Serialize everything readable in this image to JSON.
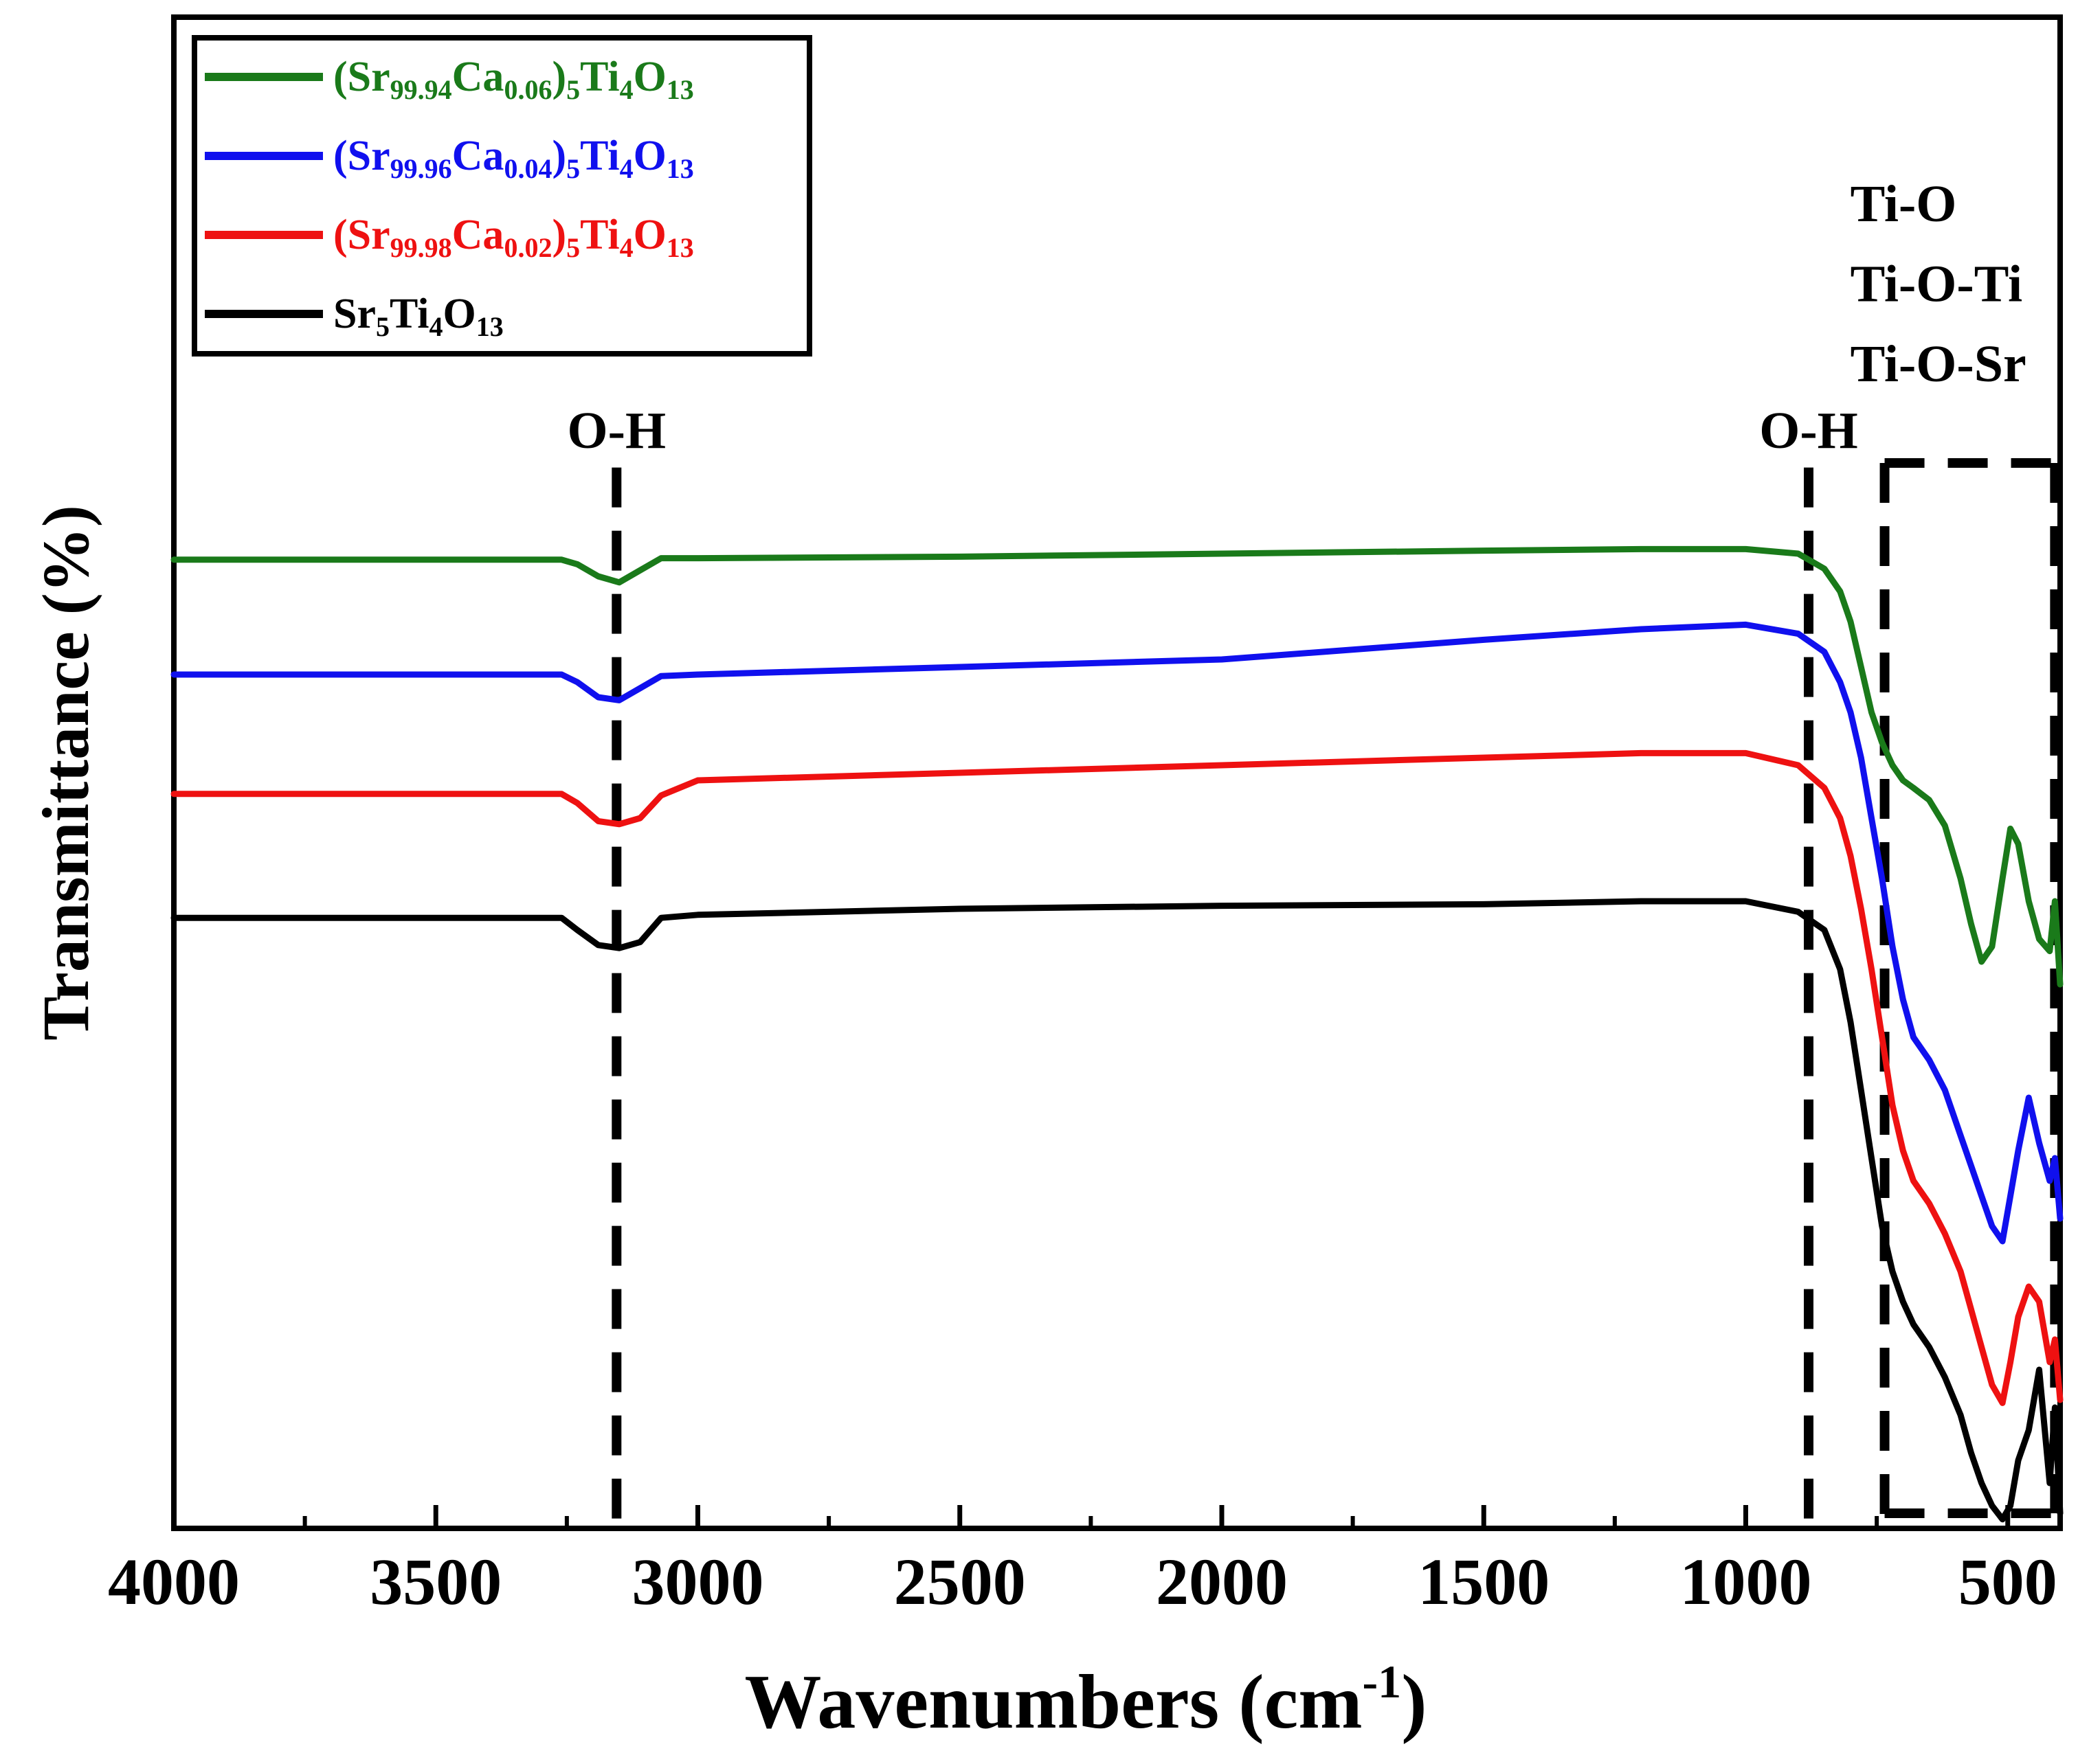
{
  "colors": {
    "green": "#1a7a1a",
    "blue": "#1010ee",
    "red": "#ee1111",
    "black": "#000000"
  },
  "chart_data": {
    "type": "line",
    "xlabel": "Wavenumbers (cm",
    "xlabel_sup": "-1",
    "xlabel_close": ")",
    "ylabel": "Transmittance (%)",
    "xlim": [
      4000,
      400
    ],
    "xlim_note": "x axis decreases left to right",
    "ylim": [
      0,
      100
    ],
    "y_ticks_labeled": false,
    "x_ticks": [
      4000,
      3500,
      3000,
      2500,
      2000,
      1500,
      1000,
      500
    ],
    "grid": false,
    "legend_position": "top-left",
    "series": [
      {
        "name_parts": [
          {
            "t": "(Sr",
            "s": ""
          },
          {
            "t": "99.94",
            "s": "sub"
          },
          {
            "t": "Ca",
            "s": ""
          },
          {
            "t": "0.06",
            "s": "sub"
          },
          {
            "t": ")",
            "s": ""
          },
          {
            "t": "5",
            "s": "sub"
          },
          {
            "t": "Ti",
            "s": ""
          },
          {
            "t": "4",
            "s": "sub"
          },
          {
            "t": "O",
            "s": ""
          },
          {
            "t": "13",
            "s": "sub"
          }
        ],
        "color": "green",
        "x": [
          4000,
          3800,
          3260,
          3230,
          3190,
          3150,
          3110,
          3070,
          3000,
          2500,
          2000,
          1500,
          1200,
          1000,
          900,
          850,
          820,
          800,
          780,
          760,
          740,
          720,
          700,
          680,
          650,
          620,
          590,
          570,
          550,
          530,
          510,
          495,
          480,
          460,
          440,
          420,
          410,
          400
        ],
        "y": [
          64.1,
          64.1,
          64.1,
          63.8,
          63.0,
          62.6,
          63.4,
          64.2,
          64.2,
          64.3,
          64.5,
          64.7,
          64.8,
          64.8,
          64.5,
          63.5,
          62.0,
          60.0,
          57.0,
          54.0,
          52.0,
          50.5,
          49.5,
          49.0,
          48.2,
          46.5,
          43.0,
          40.0,
          37.5,
          38.5,
          43.0,
          46.3,
          45.3,
          41.5,
          39.0,
          38.2,
          41.5,
          36.0
        ]
      },
      {
        "name_parts": [
          {
            "t": "(Sr",
            "s": ""
          },
          {
            "t": "99.96",
            "s": "sub"
          },
          {
            "t": "Ca",
            "s": ""
          },
          {
            "t": "0.04",
            "s": "sub"
          },
          {
            "t": ")",
            "s": ""
          },
          {
            "t": "5",
            "s": "sub"
          },
          {
            "t": "Ti",
            "s": ""
          },
          {
            "t": "4",
            "s": "sub"
          },
          {
            "t": "O",
            "s": ""
          },
          {
            "t": "13",
            "s": "sub"
          }
        ],
        "color": "blue",
        "x": [
          4000,
          3800,
          3260,
          3230,
          3190,
          3150,
          3110,
          3070,
          3000,
          2500,
          2000,
          1500,
          1200,
          1000,
          900,
          850,
          820,
          800,
          780,
          760,
          740,
          720,
          700,
          680,
          650,
          620,
          590,
          570,
          550,
          530,
          510,
          495,
          480,
          460,
          440,
          420,
          410,
          400
        ],
        "y": [
          56.5,
          56.5,
          56.5,
          56.0,
          55.0,
          54.8,
          55.6,
          56.4,
          56.5,
          57.0,
          57.5,
          58.8,
          59.5,
          59.8,
          59.2,
          58.0,
          56.0,
          54.0,
          51.0,
          47.0,
          43.0,
          38.5,
          35.0,
          32.5,
          31.0,
          29.0,
          26.0,
          24.0,
          22.0,
          20.0,
          19.0,
          22.0,
          25.0,
          28.5,
          25.5,
          23.0,
          24.5,
          20.5
        ]
      },
      {
        "name_parts": [
          {
            "t": "(Sr",
            "s": ""
          },
          {
            "t": "99.98",
            "s": "sub"
          },
          {
            "t": "Ca",
            "s": ""
          },
          {
            "t": "0.02",
            "s": "sub"
          },
          {
            "t": ")",
            "s": ""
          },
          {
            "t": "5",
            "s": "sub"
          },
          {
            "t": "Ti",
            "s": ""
          },
          {
            "t": "4",
            "s": "sub"
          },
          {
            "t": "O",
            "s": ""
          },
          {
            "t": "13",
            "s": "sub"
          }
        ],
        "color": "red",
        "x": [
          4000,
          3800,
          3260,
          3230,
          3190,
          3150,
          3110,
          3070,
          3000,
          2500,
          2000,
          1500,
          1200,
          1000,
          900,
          850,
          820,
          800,
          780,
          760,
          740,
          720,
          700,
          680,
          650,
          620,
          590,
          570,
          550,
          530,
          510,
          495,
          480,
          460,
          440,
          420,
          410,
          400
        ],
        "y": [
          48.6,
          48.6,
          48.6,
          48.0,
          46.8,
          46.6,
          47.0,
          48.5,
          49.5,
          50.0,
          50.5,
          51.0,
          51.3,
          51.3,
          50.5,
          49.0,
          47.0,
          44.5,
          41.0,
          37.0,
          32.5,
          28.0,
          25.0,
          23.0,
          21.5,
          19.5,
          17.0,
          14.5,
          12.0,
          9.5,
          8.3,
          11.0,
          14.0,
          16.0,
          15.0,
          11.0,
          12.5,
          8.5
        ]
      },
      {
        "name_parts": [
          {
            "t": "Sr",
            "s": ""
          },
          {
            "t": "5",
            "s": "sub"
          },
          {
            "t": "Ti",
            "s": ""
          },
          {
            "t": "4",
            "s": "sub"
          },
          {
            "t": "O",
            "s": ""
          },
          {
            "t": "13",
            "s": "sub"
          }
        ],
        "color": "black",
        "x": [
          4000,
          3800,
          3260,
          3230,
          3190,
          3150,
          3110,
          3070,
          3000,
          2500,
          2000,
          1500,
          1200,
          1000,
          900,
          850,
          820,
          800,
          780,
          760,
          740,
          720,
          700,
          680,
          650,
          620,
          590,
          570,
          550,
          530,
          510,
          495,
          480,
          460,
          440,
          420,
          410,
          400
        ],
        "y": [
          40.4,
          40.4,
          40.4,
          39.6,
          38.6,
          38.4,
          38.8,
          40.4,
          40.6,
          41.0,
          41.2,
          41.3,
          41.5,
          41.5,
          40.8,
          39.6,
          37.0,
          33.5,
          29.0,
          24.5,
          20.0,
          17.0,
          15.0,
          13.5,
          12.0,
          10.0,
          7.5,
          5.0,
          3.0,
          1.5,
          0.6,
          1.5,
          4.5,
          6.5,
          10.5,
          3.0,
          8.0,
          1.0
        ]
      }
    ],
    "annotations": [
      {
        "text": "O-H",
        "x": 3155,
        "y": 71.5,
        "anchor": "middle"
      },
      {
        "text": "O-H",
        "x": 880,
        "y": 71.5,
        "anchor": "middle"
      },
      {
        "text": "Ti-O",
        "x": 735,
        "y": 86.5,
        "anchor": "start"
      },
      {
        "text": "Ti-O-Ti",
        "x": 735,
        "y": 81.2,
        "anchor": "start"
      },
      {
        "text": "Ti-O-Sr",
        "x": 735,
        "y": 75.9,
        "anchor": "start"
      }
    ],
    "dashed_lines_x": [
      3155,
      880,
      735
    ],
    "region_box_x": [
      735,
      410
    ],
    "region_box_y": [
      1.0,
      70.5
    ]
  }
}
